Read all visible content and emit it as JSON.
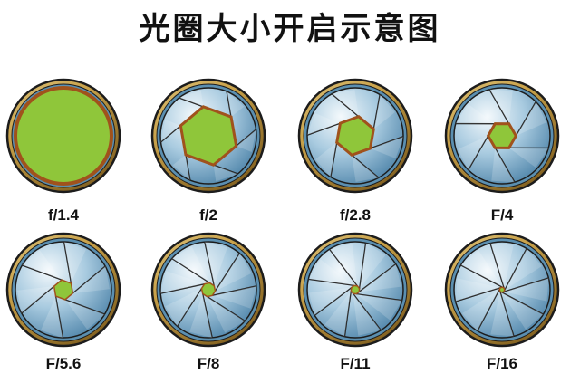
{
  "title": "光圈大小开启示意图",
  "colors": {
    "opening": "#8fc63a",
    "opening_edge": "#a0521c",
    "blade_light": "#eef5fa",
    "blade_dark": "#3f78a0",
    "ring_gold": "#c9a24a",
    "ring_blue": "#5b8fb0",
    "outline": "#1c1c1c"
  },
  "apertures": [
    {
      "label": "f/1.4",
      "opening": 1.0
    },
    {
      "label": "f/2",
      "opening": 0.68
    },
    {
      "label": "f/2.8",
      "opening": 0.45
    },
    {
      "label": "F/4",
      "opening": 0.32
    },
    {
      "label": "F/5.6",
      "opening": 0.23
    },
    {
      "label": "F/8",
      "opening": 0.16
    },
    {
      "label": "F/11",
      "opening": 0.1
    },
    {
      "label": "F/16",
      "opening": 0.06
    }
  ]
}
